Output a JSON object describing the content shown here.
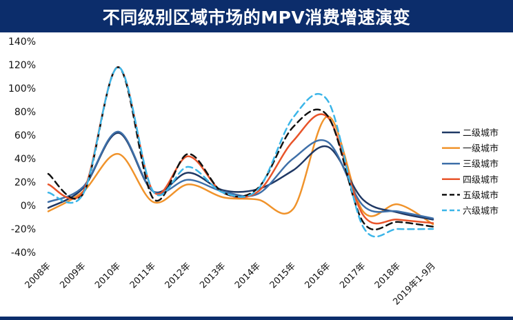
{
  "chart_data": {
    "type": "line",
    "title": "不同级别区域市场的MPV消费增速演变",
    "categories": [
      "2008年",
      "2009年",
      "2010年",
      "2011年",
      "2012年",
      "2013年",
      "2014年",
      "2015年",
      "2016年",
      "2017年",
      "2018年",
      "2019年1-9月"
    ],
    "y_ticks": [
      "140%",
      "120%",
      "100%",
      "80%",
      "60%",
      "40%",
      "20%",
      "0%",
      "-20%",
      "-40%"
    ],
    "ylim": [
      -40,
      140
    ],
    "unit": "%",
    "grid": false,
    "legend_position": "right",
    "series": [
      {
        "name": "二级城市",
        "color": "#1f3864",
        "dash": "solid",
        "values": [
          -2,
          15,
          62,
          12,
          28,
          13,
          14,
          30,
          50,
          5,
          -6,
          -12
        ]
      },
      {
        "name": "一级城市",
        "color": "#f0932b",
        "dash": "solid",
        "values": [
          -5,
          12,
          44,
          3,
          18,
          7,
          5,
          -3,
          76,
          -5,
          1,
          -16
        ]
      },
      {
        "name": "三级城市",
        "color": "#3e6fa8",
        "dash": "solid",
        "values": [
          3,
          16,
          63,
          12,
          22,
          12,
          10,
          40,
          54,
          0,
          -5,
          -11
        ]
      },
      {
        "name": "四级城市",
        "color": "#e8542a",
        "dash": "solid",
        "values": [
          18,
          12,
          118,
          12,
          42,
          11,
          12,
          55,
          75,
          -8,
          -12,
          -15
        ]
      },
      {
        "name": "五级城市",
        "color": "#111111",
        "dash": "dashed",
        "values": [
          27,
          10,
          118,
          6,
          44,
          11,
          15,
          67,
          76,
          -14,
          -14,
          -18
        ]
      },
      {
        "name": "六级城市",
        "color": "#3bb5e8",
        "dash": "dashed",
        "values": [
          11,
          10,
          118,
          12,
          33,
          11,
          14,
          75,
          89,
          -18,
          -20,
          -20
        ]
      }
    ]
  }
}
